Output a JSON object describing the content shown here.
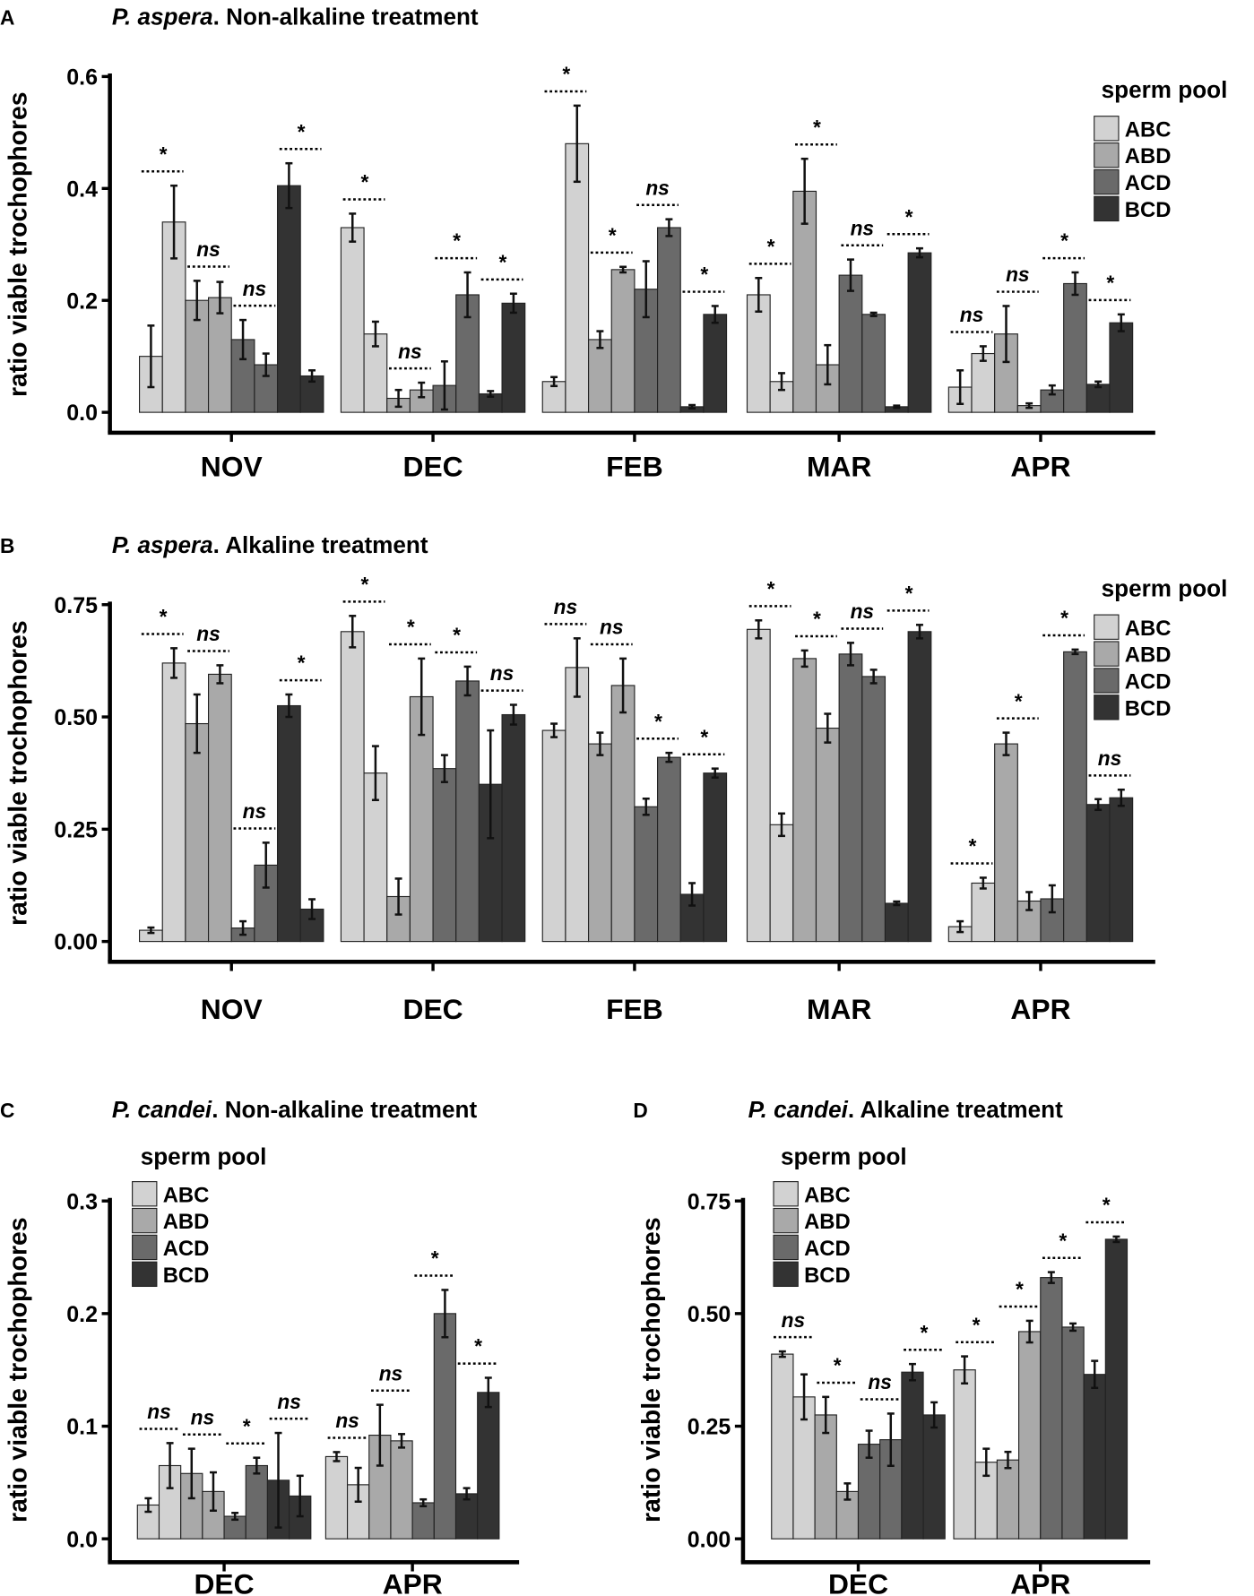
{
  "chart_data": [
    {
      "id": "A",
      "type": "bar",
      "panel_letter": "A",
      "title_species": "P. aspera",
      "title_rest": ". Non-alkaline treatment",
      "ylabel": "ratio viable trochophores",
      "xlabel": "",
      "ylim": [
        0,
        0.6
      ],
      "yticks": [
        "0.0",
        "0.2",
        "0.4",
        "0.6"
      ],
      "ytick_values": [
        0,
        0.2,
        0.4,
        0.6
      ],
      "legend": {
        "title": "sperm pool",
        "entries": [
          "ABC",
          "ABD",
          "ACD",
          "BCD"
        ],
        "placement": "right"
      },
      "categories": [
        "NOV",
        "DEC",
        "FEB",
        "MAR",
        "APR"
      ],
      "values": [
        [
          0.1,
          0.34,
          0.2,
          0.205,
          0.13,
          0.085,
          0.405,
          0.065
        ],
        [
          0.33,
          0.14,
          0.025,
          0.04,
          0.048,
          0.21,
          0.033,
          0.195
        ],
        [
          0.055,
          0.48,
          0.13,
          0.255,
          0.22,
          0.33,
          0.01,
          0.175
        ],
        [
          0.21,
          0.055,
          0.395,
          0.085,
          0.245,
          0.175,
          0.01,
          0.285
        ],
        [
          0.045,
          0.105,
          0.14,
          0.012,
          0.04,
          0.23,
          0.05,
          0.16
        ]
      ],
      "errors": [
        [
          0.055,
          0.065,
          0.035,
          0.028,
          0.035,
          0.02,
          0.04,
          0.01
        ],
        [
          0.025,
          0.022,
          0.015,
          0.013,
          0.043,
          0.04,
          0.005,
          0.017
        ],
        [
          0.008,
          0.068,
          0.015,
          0.005,
          0.05,
          0.015,
          0.003,
          0.015
        ],
        [
          0.03,
          0.015,
          0.058,
          0.035,
          0.028,
          0.003,
          0.002,
          0.008
        ],
        [
          0.03,
          0.013,
          0.05,
          0.004,
          0.008,
          0.02,
          0.005,
          0.015
        ]
      ],
      "significance": [
        [
          "*",
          "ns",
          "ns",
          "*"
        ],
        [
          "*",
          "ns",
          "*",
          "*"
        ],
        [
          "*",
          "*",
          "ns",
          "*"
        ],
        [
          "*",
          "*",
          "ns",
          "*"
        ],
        [
          "ns",
          "ns",
          "*",
          "*"
        ]
      ]
    },
    {
      "id": "B",
      "type": "bar",
      "panel_letter": "B",
      "title_species": "P. aspera",
      "title_rest": ". Alkaline treatment",
      "ylabel": "ratio viable trochophores",
      "xlabel": "",
      "ylim": [
        0,
        0.75
      ],
      "yticks": [
        "0.00",
        "0.25",
        "0.50",
        "0.75"
      ],
      "ytick_values": [
        0,
        0.25,
        0.5,
        0.75
      ],
      "legend": {
        "title": "sperm pool",
        "entries": [
          "ABC",
          "ABD",
          "ACD",
          "BCD"
        ],
        "placement": "right"
      },
      "categories": [
        "NOV",
        "DEC",
        "FEB",
        "MAR",
        "APR"
      ],
      "values": [
        [
          0.025,
          0.62,
          0.485,
          0.595,
          0.03,
          0.17,
          0.525,
          0.072
        ],
        [
          0.69,
          0.375,
          0.1,
          0.545,
          0.385,
          0.58,
          0.35,
          0.505
        ],
        [
          0.47,
          0.61,
          0.44,
          0.57,
          0.3,
          0.41,
          0.105,
          0.375
        ],
        [
          0.695,
          0.26,
          0.63,
          0.475,
          0.64,
          0.59,
          0.085,
          0.69
        ],
        [
          0.033,
          0.13,
          0.44,
          0.09,
          0.095,
          0.645,
          0.305,
          0.32
        ]
      ],
      "errors": [
        [
          0.006,
          0.033,
          0.065,
          0.02,
          0.015,
          0.05,
          0.025,
          0.022
        ],
        [
          0.035,
          0.06,
          0.04,
          0.085,
          0.03,
          0.032,
          0.12,
          0.022
        ],
        [
          0.015,
          0.065,
          0.025,
          0.06,
          0.018,
          0.01,
          0.025,
          0.01
        ],
        [
          0.02,
          0.025,
          0.018,
          0.032,
          0.025,
          0.015,
          0.004,
          0.015
        ],
        [
          0.012,
          0.012,
          0.025,
          0.02,
          0.03,
          0.005,
          0.012,
          0.018
        ]
      ],
      "significance": [
        [
          "*",
          "ns",
          "ns",
          "*"
        ],
        [
          "*",
          "*",
          "*",
          "ns"
        ],
        [
          "ns",
          "ns",
          "*",
          "*"
        ],
        [
          "*",
          "*",
          "ns",
          "*"
        ],
        [
          "*",
          "*",
          "*",
          "ns"
        ]
      ]
    },
    {
      "id": "C",
      "type": "bar",
      "panel_letter": "C",
      "title_species": "P. candei",
      "title_rest": ". Non-alkaline treatment",
      "ylabel": "ratio viable trochophores",
      "xlabel": "",
      "ylim": [
        0,
        0.3
      ],
      "yticks": [
        "0.0",
        "0.1",
        "0.2",
        "0.3"
      ],
      "ytick_values": [
        0,
        0.1,
        0.2,
        0.3
      ],
      "legend": {
        "title": "sperm pool",
        "entries": [
          "ABC",
          "ABD",
          "ACD",
          "BCD"
        ],
        "placement": "top-left"
      },
      "categories": [
        "DEC",
        "APR"
      ],
      "values": [
        [
          0.03,
          0.065,
          0.058,
          0.042,
          0.02,
          0.065,
          0.052,
          0.038
        ],
        [
          0.073,
          0.048,
          0.092,
          0.087,
          0.032,
          0.2,
          0.04,
          0.13
        ]
      ],
      "errors": [
        [
          0.006,
          0.02,
          0.022,
          0.017,
          0.003,
          0.007,
          0.042,
          0.018
        ],
        [
          0.004,
          0.015,
          0.027,
          0.006,
          0.003,
          0.021,
          0.005,
          0.013
        ]
      ],
      "significance": [
        [
          "ns",
          "ns",
          "*",
          "ns"
        ],
        [
          "ns",
          "ns",
          "*",
          "*"
        ]
      ]
    },
    {
      "id": "D",
      "type": "bar",
      "panel_letter": "D",
      "title_species": "P. candei",
      "title_rest": ". Alkaline treatment",
      "ylabel": "ratio viable trochophores",
      "xlabel": "",
      "ylim": [
        0,
        0.75
      ],
      "yticks": [
        "0.00",
        "0.25",
        "0.50",
        "0.75"
      ],
      "ytick_values": [
        0,
        0.25,
        0.5,
        0.75
      ],
      "legend": {
        "title": "sperm pool",
        "entries": [
          "ABC",
          "ABD",
          "ACD",
          "BCD"
        ],
        "placement": "top-left"
      },
      "categories": [
        "DEC",
        "APR"
      ],
      "values": [
        [
          0.41,
          0.315,
          0.275,
          0.105,
          0.21,
          0.22,
          0.37,
          0.275
        ],
        [
          0.375,
          0.17,
          0.175,
          0.46,
          0.58,
          0.47,
          0.365,
          0.665
        ]
      ],
      "errors": [
        [
          0.006,
          0.05,
          0.04,
          0.018,
          0.03,
          0.058,
          0.018,
          0.028
        ],
        [
          0.03,
          0.03,
          0.018,
          0.024,
          0.012,
          0.008,
          0.03,
          0.006
        ]
      ],
      "significance": [
        [
          "ns",
          "*",
          "ns",
          "*"
        ],
        [
          "*",
          "*",
          "*",
          "*"
        ]
      ]
    }
  ],
  "colors": {
    "ABC": "#d2d2d2",
    "ABD": "#a9a9a9",
    "ACD": "#6a6a6a",
    "BCD": "#333333"
  }
}
